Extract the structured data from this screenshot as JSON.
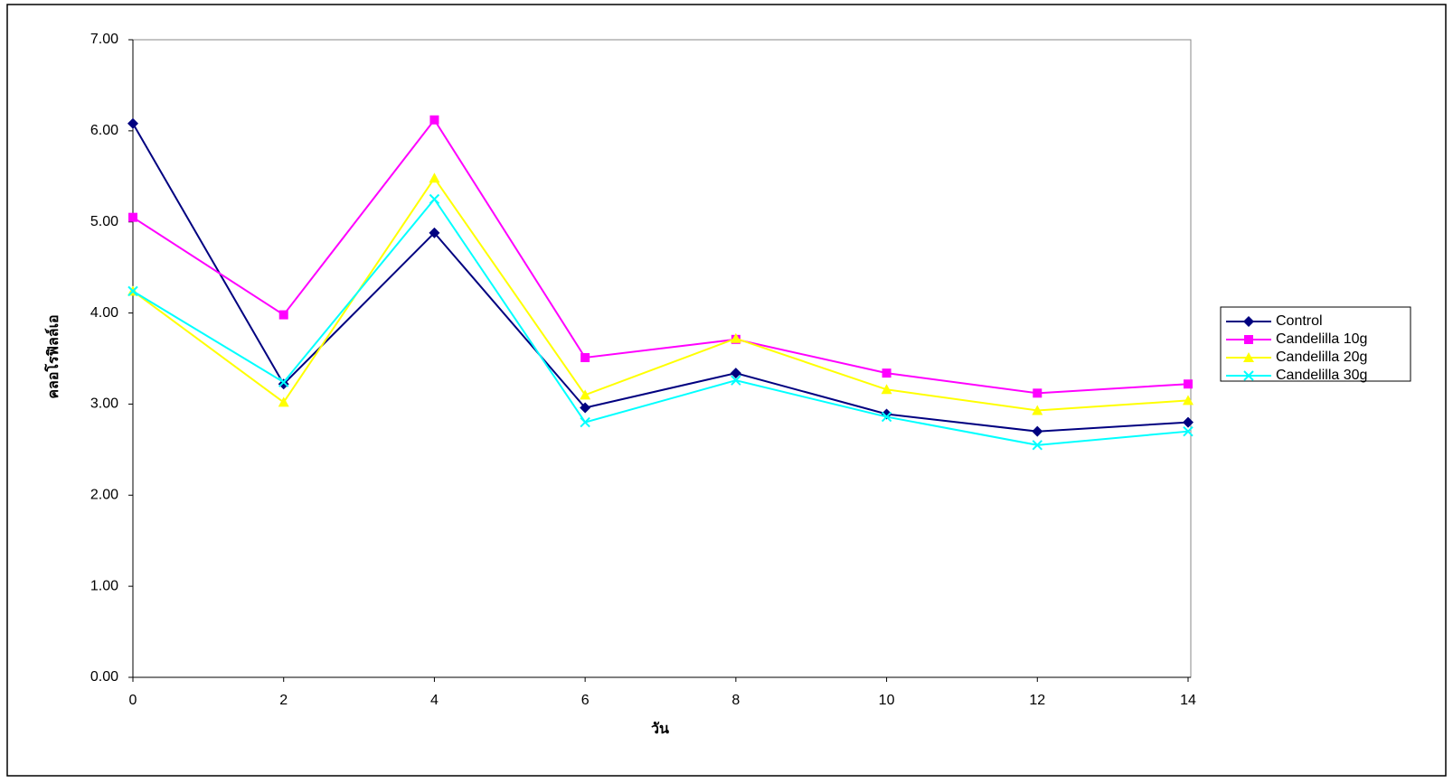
{
  "chart_data": {
    "type": "line",
    "x_label": "วัน",
    "y_label": "คลอโรฟิลล์เอ",
    "x": [
      0,
      2,
      4,
      6,
      8,
      10,
      12,
      14
    ],
    "xlim": [
      0,
      14
    ],
    "xticks": [
      0,
      2,
      4,
      6,
      8,
      10,
      12,
      14
    ],
    "ylim": [
      0,
      7
    ],
    "yticks": [
      {
        "value": 0,
        "label": "0.00"
      },
      {
        "value": 1,
        "label": "1.00"
      },
      {
        "value": 2,
        "label": "2.00"
      },
      {
        "value": 3,
        "label": "3.00"
      },
      {
        "value": 4,
        "label": "4.00"
      },
      {
        "value": 5,
        "label": "5.00"
      },
      {
        "value": 6,
        "label": "6.00"
      },
      {
        "value": 7,
        "label": "7.00"
      }
    ],
    "grid": false,
    "legend": "right",
    "series": [
      {
        "name": "Control",
        "color": "#000080",
        "marker": "diamond",
        "values": [
          6.08,
          3.22,
          4.88,
          2.96,
          3.34,
          2.89,
          2.7,
          2.8
        ]
      },
      {
        "name": "Candelilla 10g",
        "color": "#ff00ff",
        "marker": "square",
        "values": [
          5.05,
          3.98,
          6.12,
          3.51,
          3.71,
          3.34,
          3.12,
          3.22
        ]
      },
      {
        "name": "Candelilla 20g",
        "color": "#ffff00",
        "marker": "triangle",
        "values": [
          4.24,
          3.02,
          5.48,
          3.1,
          3.72,
          3.16,
          2.93,
          3.04
        ]
      },
      {
        "name": "Candelilla 30g",
        "color": "#00ffff",
        "marker": "x",
        "values": [
          4.24,
          3.24,
          5.25,
          2.8,
          3.26,
          2.86,
          2.55,
          2.7
        ]
      }
    ]
  }
}
